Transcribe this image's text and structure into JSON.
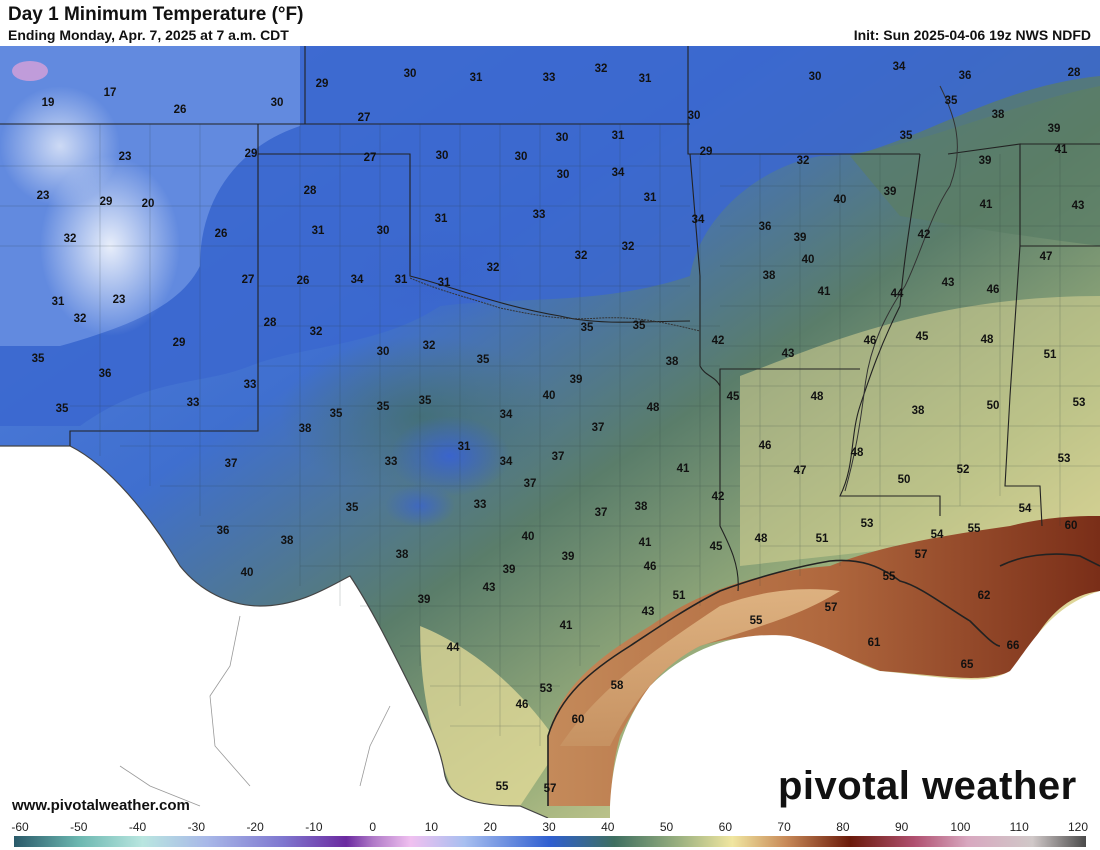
{
  "title": "Day 1 Minimum Temperature (°F)",
  "subtitle": "Ending Monday, Apr. 7, 2025 at 7 a.m. CDT",
  "init": "Init: Sun 2025-04-06 19z NWS NDFD",
  "website": "www.pivotalweather.com",
  "brand": "pivotal weather",
  "colorbar": {
    "ticks": [
      "-60",
      "-50",
      "-40",
      "-30",
      "-20",
      "-10",
      "0",
      "10",
      "20",
      "30",
      "40",
      "50",
      "60",
      "70",
      "80",
      "90",
      "100",
      "110",
      "120"
    ],
    "min": -60,
    "max": 120
  },
  "colors": {
    "cold": "#2f5fd0",
    "mid": "#52785a",
    "warm": "#e6dc9a",
    "hot": "#8a3a1e"
  },
  "temps": [
    {
      "v": "19"
    },
    {
      "v": "17"
    },
    {
      "v": "26"
    },
    {
      "v": "30"
    },
    {
      "v": "29"
    },
    {
      "v": "30"
    },
    {
      "v": "31"
    },
    {
      "v": "33"
    },
    {
      "v": "32"
    },
    {
      "v": "31"
    },
    {
      "v": "30"
    },
    {
      "v": "30"
    },
    {
      "v": "34"
    },
    {
      "v": "36"
    },
    {
      "v": "28"
    },
    {
      "v": "35"
    },
    {
      "v": "38"
    },
    {
      "v": "39"
    },
    {
      "v": "27"
    },
    {
      "v": "27"
    },
    {
      "v": "23"
    },
    {
      "v": "29"
    },
    {
      "v": "30"
    },
    {
      "v": "30"
    },
    {
      "v": "30"
    },
    {
      "v": "31"
    },
    {
      "v": "29"
    },
    {
      "v": "32"
    },
    {
      "v": "35"
    },
    {
      "v": "39"
    },
    {
      "v": "41"
    },
    {
      "v": "23"
    },
    {
      "v": "29"
    },
    {
      "v": "20"
    },
    {
      "v": "28"
    },
    {
      "v": "34"
    },
    {
      "v": "30"
    },
    {
      "v": "40"
    },
    {
      "v": "39"
    },
    {
      "v": "41"
    },
    {
      "v": "43"
    },
    {
      "v": "32"
    },
    {
      "v": "26"
    },
    {
      "v": "31"
    },
    {
      "v": "30"
    },
    {
      "v": "31"
    },
    {
      "v": "33"
    },
    {
      "v": "31"
    },
    {
      "v": "36"
    },
    {
      "v": "39"
    },
    {
      "v": "42"
    },
    {
      "v": "47"
    },
    {
      "v": "23"
    },
    {
      "v": "27"
    },
    {
      "v": "26"
    },
    {
      "v": "34"
    },
    {
      "v": "31"
    },
    {
      "v": "31"
    },
    {
      "v": "32"
    },
    {
      "v": "32"
    },
    {
      "v": "32"
    },
    {
      "v": "34"
    },
    {
      "v": "38"
    },
    {
      "v": "40"
    },
    {
      "v": "41"
    },
    {
      "v": "44"
    },
    {
      "v": "43"
    },
    {
      "v": "46"
    },
    {
      "v": "31"
    },
    {
      "v": "32"
    },
    {
      "v": "28"
    },
    {
      "v": "32"
    },
    {
      "v": "35"
    },
    {
      "v": "35"
    },
    {
      "v": "42"
    },
    {
      "v": "46"
    },
    {
      "v": "45"
    },
    {
      "v": "48"
    },
    {
      "v": "51"
    },
    {
      "v": "29"
    },
    {
      "v": "33"
    },
    {
      "v": "30"
    },
    {
      "v": "32"
    },
    {
      "v": "35"
    },
    {
      "v": "38"
    },
    {
      "v": "43"
    },
    {
      "v": "35"
    },
    {
      "v": "36"
    },
    {
      "v": "33"
    },
    {
      "v": "39"
    },
    {
      "v": "45"
    },
    {
      "v": "48"
    },
    {
      "v": "53"
    },
    {
      "v": "35"
    },
    {
      "v": "35"
    },
    {
      "v": "35"
    },
    {
      "v": "35"
    },
    {
      "v": "34"
    },
    {
      "v": "40"
    },
    {
      "v": "48"
    },
    {
      "v": "50"
    },
    {
      "v": "38"
    },
    {
      "v": "38"
    },
    {
      "v": "37"
    },
    {
      "v": "46"
    },
    {
      "v": "33"
    },
    {
      "v": "34"
    },
    {
      "v": "31"
    },
    {
      "v": "37"
    },
    {
      "v": "48"
    },
    {
      "v": "53"
    },
    {
      "v": "41"
    },
    {
      "v": "47"
    },
    {
      "v": "52"
    },
    {
      "v": "50"
    },
    {
      "v": "37"
    },
    {
      "v": "42"
    },
    {
      "v": "35"
    },
    {
      "v": "33"
    },
    {
      "v": "37"
    },
    {
      "v": "37"
    },
    {
      "v": "38"
    },
    {
      "v": "53"
    },
    {
      "v": "55"
    },
    {
      "v": "54"
    },
    {
      "v": "60"
    },
    {
      "v": "36"
    },
    {
      "v": "40"
    },
    {
      "v": "38"
    },
    {
      "v": "41"
    },
    {
      "v": "48"
    },
    {
      "v": "51"
    },
    {
      "v": "54"
    },
    {
      "v": "38"
    },
    {
      "v": "39"
    },
    {
      "v": "45"
    },
    {
      "v": "57"
    },
    {
      "v": "40"
    },
    {
      "v": "39"
    },
    {
      "v": "46"
    },
    {
      "v": "43"
    },
    {
      "v": "51"
    },
    {
      "v": "55"
    },
    {
      "v": "39"
    },
    {
      "v": "57"
    },
    {
      "v": "62"
    },
    {
      "v": "43"
    },
    {
      "v": "55"
    },
    {
      "v": "41"
    },
    {
      "v": "61"
    },
    {
      "v": "66"
    },
    {
      "v": "44"
    },
    {
      "v": "65"
    },
    {
      "v": "58"
    },
    {
      "v": "53"
    },
    {
      "v": "46"
    },
    {
      "v": "60"
    },
    {
      "v": "55"
    },
    {
      "v": "57"
    }
  ]
}
